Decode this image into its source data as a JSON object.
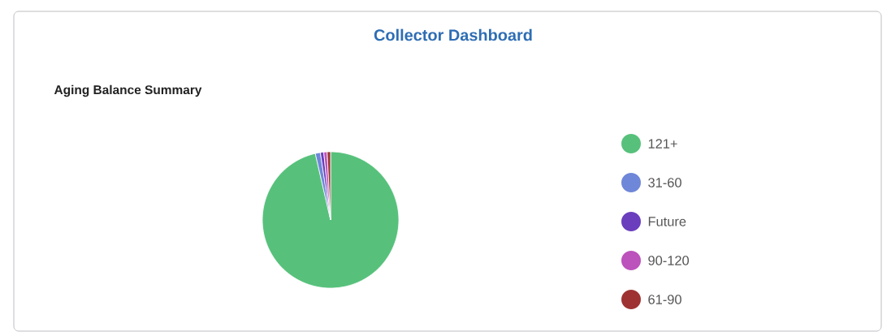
{
  "chart_data": {
    "type": "pie",
    "title": "Collector Dashboard",
    "subtitle": "Aging Balance Summary",
    "categories": [
      "121+",
      "31-60",
      "Future",
      "90-120",
      "61-90"
    ],
    "values": [
      96.4,
      1.2,
      0.8,
      0.8,
      0.8
    ],
    "colors": [
      "#57c17b",
      "#6f87d8",
      "#6a3ebd",
      "#bc52bc",
      "#9e3232"
    ],
    "legend": "right"
  }
}
